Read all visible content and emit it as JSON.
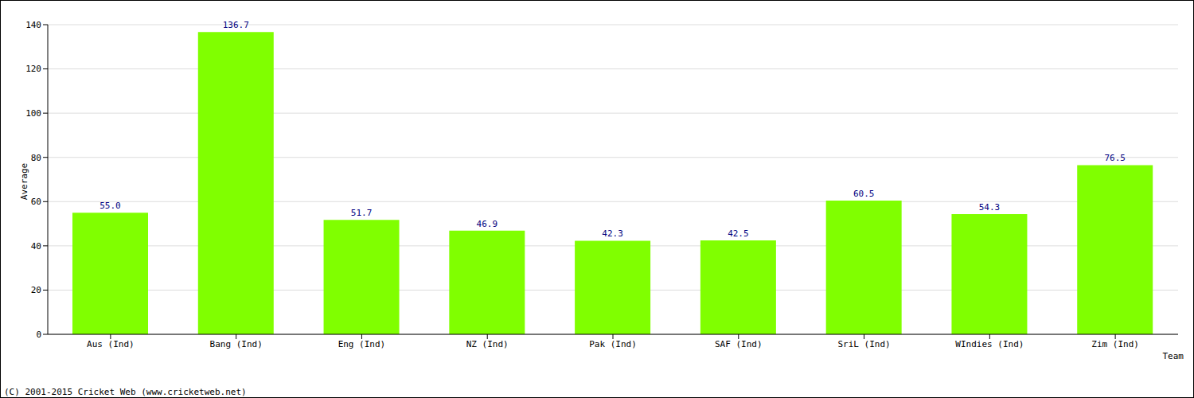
{
  "chart_data": {
    "type": "bar",
    "categories": [
      "Aus (Ind)",
      "Bang (Ind)",
      "Eng (Ind)",
      "NZ (Ind)",
      "Pak (Ind)",
      "SAF (Ind)",
      "SriL (Ind)",
      "WIndies (Ind)",
      "Zim (Ind)"
    ],
    "values": [
      55.0,
      136.7,
      51.7,
      46.9,
      42.3,
      42.5,
      60.5,
      54.3,
      76.5
    ],
    "value_labels": [
      "55.0",
      "136.7",
      "51.7",
      "46.9",
      "42.3",
      "42.5",
      "60.5",
      "54.3",
      "76.5"
    ],
    "data_labels": true,
    "color": "#80ff00",
    "ylim": [
      0,
      140
    ],
    "yticks": [
      0,
      20,
      40,
      60,
      80,
      100,
      120,
      140
    ],
    "grid": true,
    "y_label": "Average",
    "x_label": "Team",
    "footer": "(C) 2001-2015 Cricket Web (www.cricketweb.net)"
  }
}
